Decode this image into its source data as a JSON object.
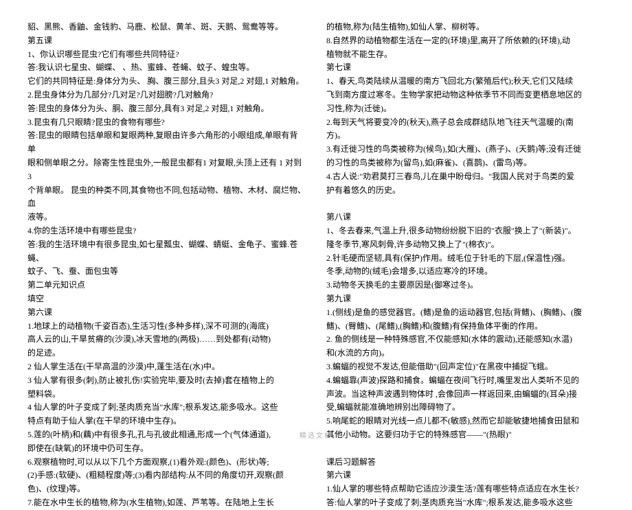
{
  "footer": "精选文档",
  "lines": [
    "貂、黑熊、香鼬、金钱豹、马鹿、松鼠、黄羊、斑、天鹅、鸳鸯等等。",
    "第五课",
    "1、你认识哪些昆虫?它们有哪些共同特征?",
    "答:我认识七星虫、蝴蝶、 、热、蜜蜂、苍蝇、蚊子、蝗虫等。",
    "它们的共同特征是:身体分为头、 胸、腹三部分,且头3 对足,2 对翅,1 对触角。",
    "2.昆虫身体分为几部分?几对足?几对翅膀?几对触角?",
    "答:昆虫的身体分为头、胴、腹三部分,具有3 对足,2 对翅,1 对触角。",
    "3.昆虫有几只眼睛?昆虫的食物有哪些?",
    "答:昆虫的眼睛包括单眼和复眼两种,复眼由许多六角形的小眼组成,单眼有背单",
    "眼和侧单眼之分。除寄生性昆虫外,一般昆虫都有1 对复眼,头顶上还有 1 对到 3",
    "个背单眼。 昆虫的种类不同,其食物也不同,包括动物、植物、木材、腐烂物、血",
    "液等。",
    "4.你的生活环境中有哪些昆虫?",
    "答:我的生活环境中有很多昆虫,如七星瓢虫、蝴蝶、蜻蜓、金龟子、蜜蜂.苍蝇、",
    "蚊子、飞、蚕、面包虫等",
    "第二单元知识点",
    "填空",
    "第六课",
    "1.地球上的动植物(千姿百态),生活习性(多种多样),深不可测的(海底)",
    "高人云的山,干旱贫瘠的(沙漠),冰天雪地的(两极)……到处都有(动物)",
    "的足迹。",
    "2 仙人掌生活在(干早高温的沙漠)中,蓬生活在(水)中。",
    "3 仙人掌有很多(刺),防止被扎伤!实验完毕,要及时(去掉)套在植物上的",
    "塑料袋。",
    "4 仙人掌的叶子变成了刺;茎肉质充当\"水库\";根系发达,能多吸水。这些",
    "特点有助于仙人掌(在干早的环境中生存)。",
    "5.莲的(叶柄)和(藕)中有很多孔,孔与孔彼此相通,形成一个(气体通道),",
    "即使在(缺氧)的环境中仍可生存。",
    "6.观察植物时,可以从以下几个方面观察,(1)看外观:(颜色)、(形状)等;",
    "(2)手感:(软硬)、(粗糙程度)等;(3)看内部结构:从不同的角度切开,观察(颜",
    "色)、(纹理)等。",
    "7.能在水中生长的植物,称为(水生植物),如莲、芦苇等。在陆地上生长",
    "的植物,称为(陆生植物),如仙人掌、柳树等。",
    "8.自然界的动植物都生活在一定的(环境)里,离开了所依赖的(环境),动",
    "植物就不能生存。",
    "第七课",
    "1、春天,鸟类陆续从温暖的南方飞回北方(繁殖后代);秋天,它们又陆续",
    "飞到南方度过寒冬。生物学家把动物这种依季节不同而变更栖息地区的",
    "习性,称为(迁徙)。",
    "2.每到天气将要变冷的(秋天),燕子总会成群结队地飞往天气温暖的(南",
    "方)。",
    "3.有迁徙习性的鸟类被称为(候鸟),如(大雁)、(燕子)、(天鹅)等;没有迁徙",
    "的习性的鸟类被称为(留鸟),如(麻雀)、(喜鹊)、(雷鸟)等。",
    "4.古人说:\"劝君莫打三春鸟,儿在巢中盼母归。\"我国人民对于鸟类的爱",
    "护有着悠久的历史。",
    "　",
    "第八课",
    "1、冬去春来,气温上升,很多动物纷纷脱下旧的\"衣服\"换上了\"(新装)\"。",
    "隆冬季节,寒风刺骨,许多动物又换上了\"(棉衣)\"。",
    "2.针毛硬而坚韧,具有(保护)作用。绒毛位于针毛的下层,(保温性)强。",
    "冬季,动物的(绒毛)会增多,以适应寒冷的环境。",
    "3.动物冬天换毛的主要原因是(御寒过冬)。",
    "第九课",
    "1.(侧线)是鱼的感觉器官。(鳍)是鱼的运动器官,包括(背鳍)、(胸鳍)、(腹",
    "鳍)、(臀鳍)、(尾鳍),(胸鳍)和(腹鳍)有保持鱼体平衡的作用。",
    "2. 鱼的侧线是一种特殊感官,不仅能感知(水体的震动),还能感知(水温)",
    "和(水流的方向)。",
    "3.蝙蝠的视觉不发达,但能借助\"(回声定位)\"在黑夜中捕捉飞蛾。",
    "4.蝙蝠靠(声波)探路和捕食。蝙蝠在夜间飞行时,嘴里发出人类听不见的",
    "声波。当这种声波遇到物体时 ,会像回声一样返回来,由蝙蝠的(耳朵)接",
    "受,蝙蝠就能准确地辨别出障碍物了。",
    "5.响尾蛇的眼睛对光线一点儿都不(敏感),然而它却能敏捷地捕食田鼠和",
    "其他小动物。这要归功于它的特殊感官——\"(热眼)\"",
    "　",
    "课后习题解答",
    "第六课",
    "1.仙人掌的哪些特点帮助它适应沙漠生活?莲有哪些特点适应在水生长?",
    "答:仙人掌的叶子变成了刺;茎肉质充当\"水库\";根系发达,能多吸水这些"
  ]
}
